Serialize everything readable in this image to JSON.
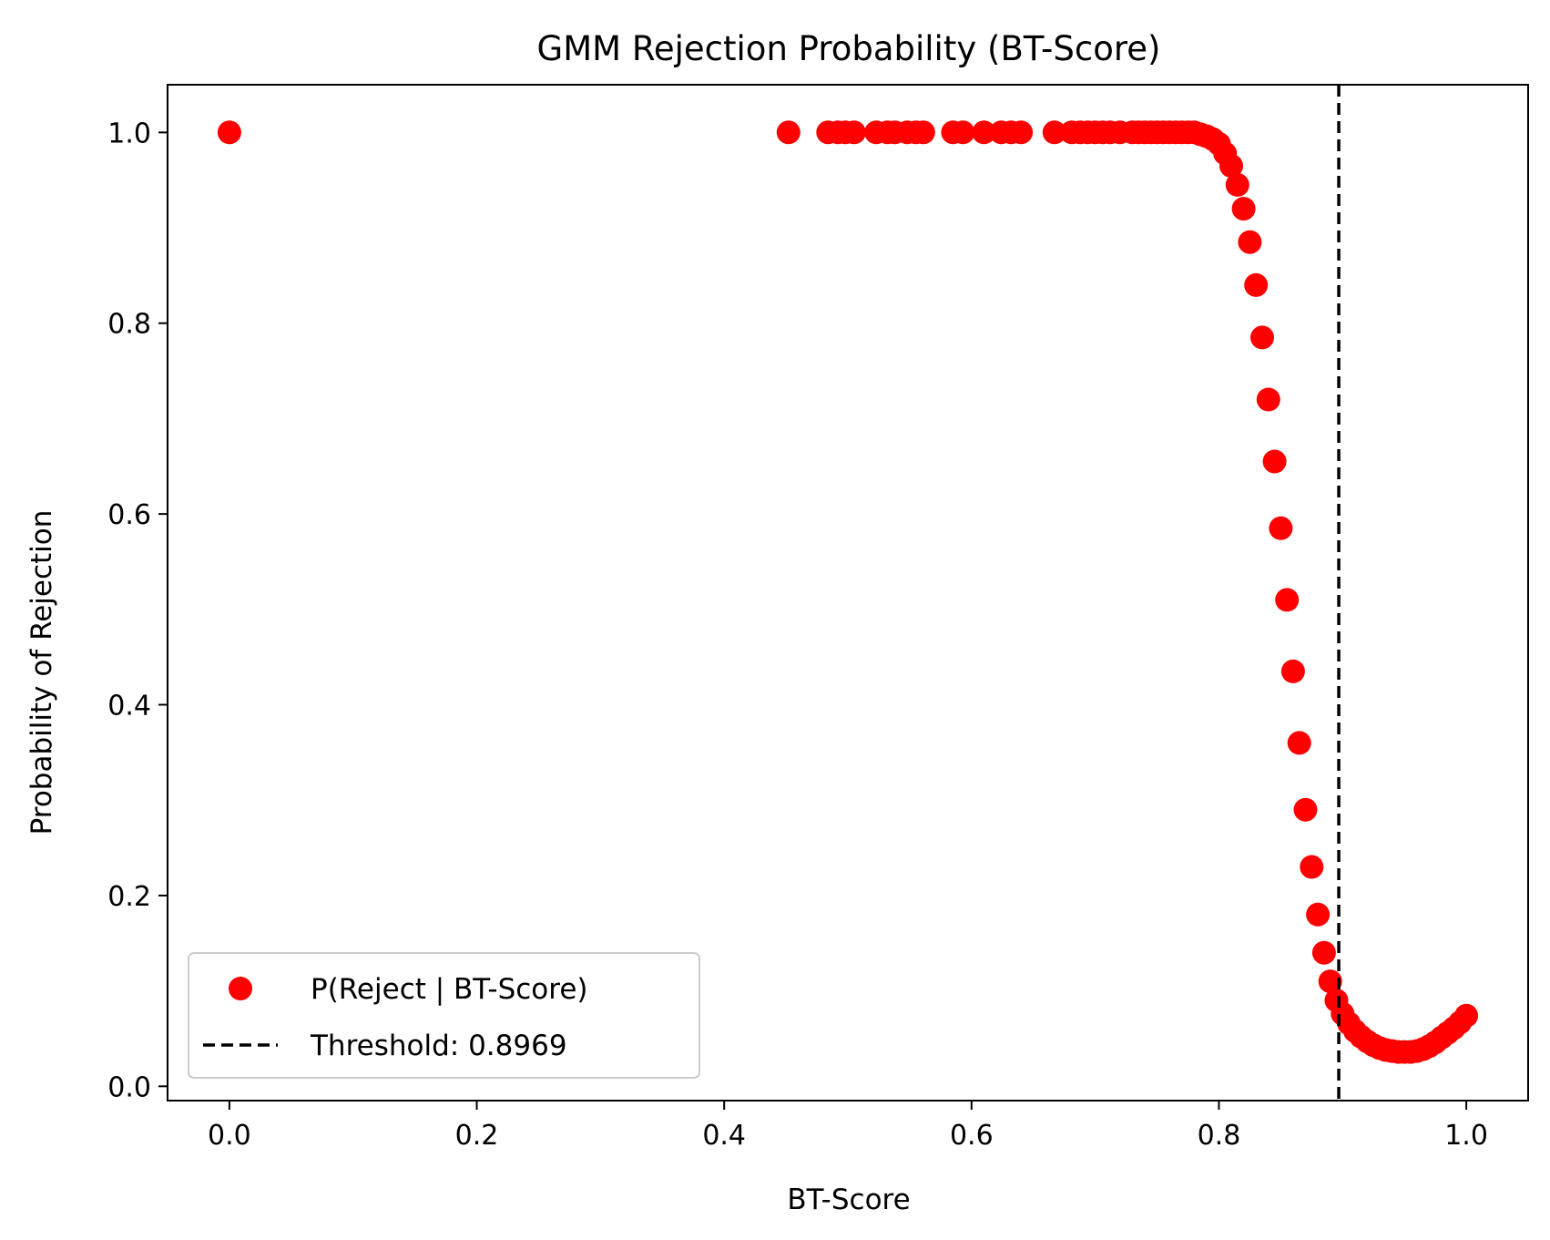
{
  "chart_data": {
    "type": "scatter",
    "title": "GMM Rejection Probability (BT-Score)",
    "xlabel": "BT-Score",
    "ylabel": "Probability of Rejection",
    "xlim": [
      -0.05,
      1.05
    ],
    "ylim": [
      -0.015,
      1.05
    ],
    "x_ticks": [
      0.0,
      0.2,
      0.4,
      0.6,
      0.8,
      1.0
    ],
    "x_tick_labels": [
      "0.0",
      "0.2",
      "0.4",
      "0.6",
      "0.8",
      "1.0"
    ],
    "y_ticks": [
      0.0,
      0.2,
      0.4,
      0.6,
      0.8,
      1.0
    ],
    "y_tick_labels": [
      "0.0",
      "0.2",
      "0.4",
      "0.6",
      "0.8",
      "1.0"
    ],
    "grid": false,
    "legend_position": "lower-left",
    "series": [
      {
        "name": "P(Reject | BT-Score)",
        "color": "#ff0000",
        "marker": "circle",
        "points": [
          [
            0.0,
            1.0
          ],
          [
            0.452,
            1.0
          ],
          [
            0.484,
            1.0
          ],
          [
            0.492,
            1.0
          ],
          [
            0.498,
            1.0
          ],
          [
            0.505,
            1.0
          ],
          [
            0.523,
            1.0
          ],
          [
            0.532,
            1.0
          ],
          [
            0.538,
            1.0
          ],
          [
            0.548,
            1.0
          ],
          [
            0.555,
            1.0
          ],
          [
            0.561,
            1.0
          ],
          [
            0.585,
            1.0
          ],
          [
            0.593,
            1.0
          ],
          [
            0.61,
            1.0
          ],
          [
            0.624,
            1.0
          ],
          [
            0.632,
            1.0
          ],
          [
            0.64,
            1.0
          ],
          [
            0.667,
            1.0
          ],
          [
            0.681,
            1.0
          ],
          [
            0.688,
            1.0
          ],
          [
            0.694,
            1.0
          ],
          [
            0.7,
            1.0
          ],
          [
            0.706,
            1.0
          ],
          [
            0.712,
            1.0
          ],
          [
            0.72,
            1.0
          ],
          [
            0.73,
            1.0
          ],
          [
            0.735,
            1.0
          ],
          [
            0.74,
            1.0
          ],
          [
            0.745,
            1.0
          ],
          [
            0.75,
            1.0
          ],
          [
            0.755,
            1.0
          ],
          [
            0.76,
            1.0
          ],
          [
            0.765,
            1.0
          ],
          [
            0.77,
            1.0
          ],
          [
            0.775,
            1.0
          ],
          [
            0.78,
            1.0
          ],
          [
            0.785,
            0.998
          ],
          [
            0.79,
            0.996
          ],
          [
            0.795,
            0.993
          ],
          [
            0.8,
            0.988
          ],
          [
            0.805,
            0.978
          ],
          [
            0.81,
            0.965
          ],
          [
            0.815,
            0.945
          ],
          [
            0.82,
            0.92
          ],
          [
            0.825,
            0.885
          ],
          [
            0.83,
            0.84
          ],
          [
            0.835,
            0.785
          ],
          [
            0.84,
            0.72
          ],
          [
            0.845,
            0.655
          ],
          [
            0.85,
            0.585
          ],
          [
            0.855,
            0.51
          ],
          [
            0.86,
            0.435
          ],
          [
            0.865,
            0.36
          ],
          [
            0.87,
            0.29
          ],
          [
            0.875,
            0.23
          ],
          [
            0.88,
            0.18
          ],
          [
            0.885,
            0.14
          ],
          [
            0.89,
            0.11
          ],
          [
            0.895,
            0.09
          ],
          [
            0.9,
            0.076
          ],
          [
            0.905,
            0.066
          ],
          [
            0.91,
            0.058
          ],
          [
            0.915,
            0.052
          ],
          [
            0.92,
            0.047
          ],
          [
            0.925,
            0.043
          ],
          [
            0.93,
            0.04
          ],
          [
            0.935,
            0.038
          ],
          [
            0.94,
            0.037
          ],
          [
            0.945,
            0.036
          ],
          [
            0.95,
            0.036
          ],
          [
            0.955,
            0.036
          ],
          [
            0.96,
            0.037
          ],
          [
            0.965,
            0.039
          ],
          [
            0.97,
            0.042
          ],
          [
            0.975,
            0.046
          ],
          [
            0.98,
            0.051
          ],
          [
            0.985,
            0.056
          ],
          [
            0.99,
            0.061
          ],
          [
            0.995,
            0.067
          ],
          [
            1.0,
            0.074
          ]
        ]
      }
    ],
    "threshold": {
      "name": "Threshold: 0.8969",
      "x": 0.8969,
      "color": "#000000",
      "style": "dashed"
    }
  }
}
